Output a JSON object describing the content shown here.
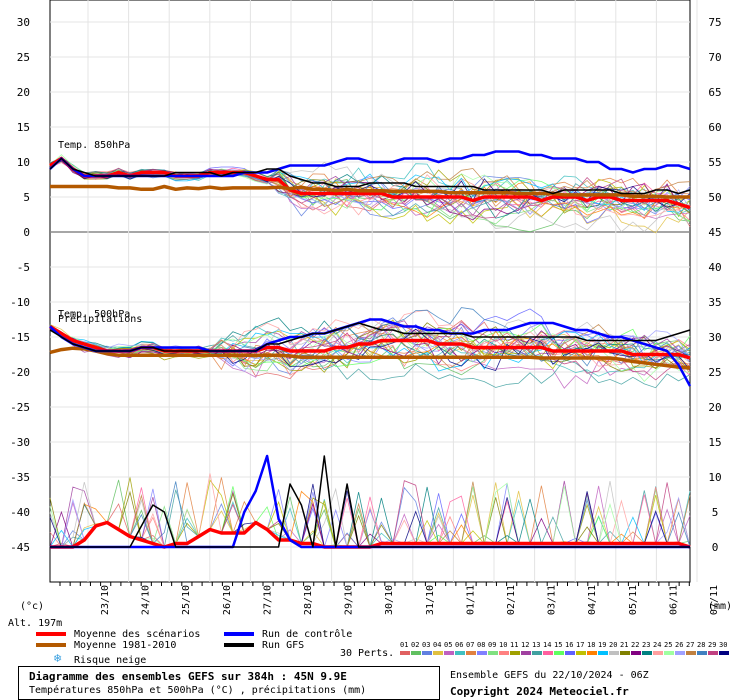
{
  "chart_data": {
    "type": "line",
    "left_axis": {
      "ticks": [
        30,
        25,
        20,
        15,
        10,
        5,
        0,
        -5,
        -10,
        -15,
        -20,
        -25,
        -30,
        -35,
        -40,
        -45
      ],
      "unit": "(°c)"
    },
    "right_axis": {
      "ticks": [
        75,
        70,
        65,
        60,
        55,
        50,
        45,
        40,
        35,
        30,
        25,
        20,
        15,
        10,
        5,
        0
      ],
      "unit": "(mm)"
    },
    "x_ticks": [
      "23/10",
      "24/10",
      "25/10",
      "26/10",
      "27/10",
      "28/10",
      "29/10",
      "30/10",
      "31/10",
      "01/11",
      "02/11",
      "03/11",
      "04/11",
      "05/11",
      "06/11",
      "07/11"
    ],
    "panel_labels": {
      "t850": "Temp. 850hPa",
      "t500": "Temp. 500hPa",
      "precip": "Précipitations"
    },
    "altitude_label": "Alt. 197m",
    "series": [
      {
        "name": "Moyenne des scénarios",
        "color": "#ff0000",
        "t850": [
          9.5,
          10.5,
          9,
          8,
          8,
          8,
          8.5,
          8,
          8.5,
          8.5,
          8.5,
          8,
          8,
          8,
          8.5,
          8.5,
          8.5,
          8.5,
          8,
          7.5,
          7.5,
          6,
          5.5,
          5.5,
          5.5,
          5.5,
          5.5,
          5.5,
          5.5,
          5.5,
          5,
          5,
          5,
          5,
          5,
          5,
          5,
          4.5,
          5,
          5,
          5,
          5,
          5,
          4.5,
          5,
          5,
          5,
          4.5,
          5,
          5,
          4.5,
          4.5,
          4.5,
          4.5,
          4.5,
          4,
          3.5
        ],
        "t500": [
          -13.5,
          -14.5,
          -15.5,
          -16,
          -16.5,
          -17,
          -17,
          -17,
          -16.5,
          -16.5,
          -17,
          -17,
          -17,
          -17,
          -17,
          -17,
          -17,
          -17,
          -17,
          -16.5,
          -16.5,
          -17,
          -17,
          -17,
          -17,
          -16.5,
          -16.5,
          -16,
          -16,
          -15.5,
          -15.5,
          -15.5,
          -15.5,
          -15.5,
          -16,
          -16,
          -16,
          -16.5,
          -16.5,
          -16.5,
          -16.5,
          -16.5,
          -16.5,
          -16.5,
          -17,
          -17,
          -17,
          -17,
          -17,
          -17,
          -17,
          -17.5,
          -17.5,
          -17.5,
          -17.5,
          -17.5,
          -18
        ],
        "precip": [
          0,
          0,
          0,
          1,
          3,
          3.5,
          2.5,
          1.5,
          1,
          0.5,
          0,
          0.5,
          0.5,
          1.5,
          2.5,
          2,
          2,
          2,
          3.5,
          2.5,
          1,
          1,
          0.5,
          0.5,
          0,
          0,
          0,
          0,
          0,
          0.5,
          0.5,
          0.5,
          0.5,
          0.5,
          0.5,
          0.5,
          0.5,
          0.5,
          0.5,
          0.5,
          0.5,
          0.5,
          0.5,
          0.5,
          0.5,
          0.5,
          0.5,
          0.5,
          0.5,
          0.5,
          0.5,
          0.5,
          0.5,
          0.5,
          0.5,
          0.5,
          0
        ]
      },
      {
        "name": "Moyenne 1981-2010",
        "color": "#b35900",
        "t850": [
          6.5,
          6.5,
          6.5,
          6.5,
          6.5,
          6.5,
          6.3,
          6.3,
          6.1,
          6.1,
          6.5,
          6.1,
          6.3,
          6.2,
          6.4,
          6.2,
          6.3,
          6.3,
          6.3,
          6.3,
          6.4,
          6.2,
          6.4,
          6.1,
          6.1,
          5.9,
          6.1,
          5.9,
          5.9,
          5.9,
          5.8,
          5.8,
          5.8,
          5.8,
          5.8,
          5.6,
          5.6,
          5.6,
          5.6,
          5.6,
          5.6,
          5.5,
          5.5,
          5.5,
          5.5,
          5.3,
          5.3,
          5.3,
          5.3,
          5.3,
          5.3,
          5.1,
          5.1,
          5.1,
          5,
          5,
          5
        ],
        "t500": [
          -17.2,
          -16.8,
          -16.6,
          -16.7,
          -17,
          -17.4,
          -17.6,
          -17.6,
          -17.6,
          -17.6,
          -17.6,
          -17.6,
          -17.6,
          -17.6,
          -17.6,
          -17.6,
          -17.6,
          -17.6,
          -17.6,
          -17.6,
          -17.6,
          -17.7,
          -17.9,
          -17.9,
          -17.9,
          -17.9,
          -17.9,
          -17.9,
          -17.9,
          -17.9,
          -17.9,
          -17.9,
          -17.9,
          -17.9,
          -17.9,
          -17.9,
          -17.9,
          -17.9,
          -17.9,
          -17.9,
          -17.9,
          -17.9,
          -17.9,
          -18,
          -18,
          -18,
          -18,
          -18,
          -18,
          -18,
          -18.2,
          -18.5,
          -18.7,
          -18.9,
          -19.1,
          -19.3,
          -19.4
        ]
      },
      {
        "name": "Run de contrôle",
        "color": "#0000ff",
        "t850": [
          9,
          10.5,
          9,
          8,
          8,
          8,
          8,
          8,
          8,
          8,
          8,
          8,
          8,
          8,
          8,
          8,
          8,
          8.5,
          8.5,
          8.5,
          9,
          9.5,
          9.5,
          9.5,
          9.5,
          10,
          10.5,
          10.5,
          10,
          10,
          10,
          10.5,
          10.5,
          10.5,
          10,
          10.5,
          10.5,
          11,
          11,
          11.5,
          11.5,
          11.5,
          11,
          11,
          10.5,
          10.5,
          10.5,
          10,
          10,
          9,
          9,
          8.5,
          9,
          9,
          9.5,
          9.5,
          9
        ],
        "t500": [
          -13.5,
          -15,
          -16,
          -16.5,
          -17,
          -17,
          -17,
          -17,
          -16.5,
          -16.5,
          -16.5,
          -16.5,
          -16.5,
          -16.5,
          -17,
          -17,
          -17,
          -17,
          -17,
          -16,
          -15.5,
          -15,
          -15,
          -14.5,
          -14.5,
          -14,
          -13.5,
          -13,
          -12.5,
          -12.5,
          -13,
          -13.5,
          -13.5,
          -14,
          -14,
          -14.5,
          -14.5,
          -14.5,
          -14,
          -14,
          -14,
          -13.5,
          -13,
          -13,
          -13,
          -13.5,
          -14,
          -14,
          -14.5,
          -15,
          -15,
          -15.5,
          -16,
          -16.5,
          -17,
          -19,
          -22
        ],
        "precip": [
          0,
          0,
          0,
          0,
          0,
          0,
          0,
          0,
          0,
          0,
          0,
          0,
          0,
          0,
          0,
          0,
          0,
          5,
          8,
          13,
          4,
          1,
          0,
          0,
          0,
          0,
          0,
          0,
          0,
          0,
          0,
          0,
          0,
          0,
          0,
          0,
          0,
          0,
          0,
          0,
          0,
          0,
          0,
          0,
          0,
          0,
          0,
          0,
          0,
          0,
          0,
          0,
          0,
          0,
          0,
          0,
          0
        ]
      },
      {
        "name": "Run GFS",
        "color": "#000000",
        "t850": [
          9,
          10.5,
          9,
          8.5,
          8,
          8,
          8,
          8,
          8,
          8,
          8,
          8.5,
          8.5,
          8.5,
          8.5,
          8,
          8.5,
          8.5,
          8.5,
          9,
          9,
          8,
          7.5,
          7,
          7,
          6.5,
          6.5,
          6.5,
          7,
          7,
          7,
          7,
          6.5,
          6.5,
          6.5,
          6.5,
          6.5,
          6.5,
          6,
          6,
          6,
          6,
          6,
          6,
          5.5,
          6,
          6,
          6,
          6,
          6,
          5.5,
          5.5,
          5.5,
          6,
          6,
          5.5,
          6
        ],
        "t500": [
          -14,
          -15,
          -16,
          -16.5,
          -17,
          -17,
          -17,
          -17,
          -16.5,
          -16.5,
          -17,
          -17,
          -17,
          -17,
          -17,
          -17,
          -17,
          -17,
          -17,
          -16,
          -16,
          -15.5,
          -15,
          -14.5,
          -14.5,
          -14,
          -13.5,
          -13,
          -13.5,
          -14,
          -14,
          -14.5,
          -14.5,
          -14.5,
          -14.5,
          -14.5,
          -14.5,
          -15,
          -15,
          -15,
          -15,
          -15,
          -15,
          -15,
          -15,
          -15,
          -15,
          -15.5,
          -15.5,
          -15.5,
          -15.5,
          -15.5,
          -15.5,
          -15.5,
          -15,
          -14.5,
          -14
        ],
        "precip": [
          0,
          0,
          0,
          0,
          0,
          0,
          0,
          0,
          3,
          6,
          5,
          0,
          0,
          0,
          0,
          0,
          0,
          0,
          0,
          0,
          0,
          9,
          6,
          0,
          13,
          0,
          9,
          0,
          0,
          0,
          0,
          0,
          0,
          0,
          0,
          0,
          0,
          0,
          0,
          0,
          0,
          0,
          0,
          0,
          0,
          0,
          0,
          0,
          0,
          0,
          0,
          0,
          0,
          0,
          0,
          0,
          0
        ]
      }
    ]
  },
  "legend": {
    "mean": "Moyenne des scénarios",
    "climo": "Moyenne 1981-2010",
    "snow": "Risque neige",
    "control": "Run de contrôle",
    "gfs": "Run GFS",
    "perts": "30 Perts."
  },
  "pert_numbers": [
    "01",
    "02",
    "03",
    "04",
    "05",
    "06",
    "07",
    "08",
    "09",
    "10",
    "11",
    "12",
    "13",
    "14",
    "15",
    "16",
    "17",
    "18",
    "19",
    "20",
    "21",
    "22",
    "23",
    "24",
    "25",
    "26",
    "27",
    "28",
    "29",
    "30"
  ],
  "pert_colors": [
    "#e06060",
    "#60c060",
    "#6080e0",
    "#e0c040",
    "#c060c0",
    "#40c0c0",
    "#e08040",
    "#8080ff",
    "#80e080",
    "#ff8080",
    "#a0a000",
    "#a040a0",
    "#40a0a0",
    "#ff60a0",
    "#60ff60",
    "#6060ff",
    "#c0c000",
    "#ff8000",
    "#00c0ff",
    "#c0c0c0",
    "#808000",
    "#800080",
    "#008080",
    "#ffa0a0",
    "#a0ffa0",
    "#a0a0ff",
    "#c08040",
    "#4080c0",
    "#c04080",
    "#000080"
  ],
  "footer": {
    "title": "Diagramme des ensembles GEFS sur 384h : 45N 9.9E",
    "subtitle": "Températures 850hPa et 500hPa (°C) , précipitations (mm)",
    "run_info": "Ensemble GEFS du 22/10/2024 - 06Z",
    "copyright": "Copyright 2024 Meteociel.fr"
  }
}
